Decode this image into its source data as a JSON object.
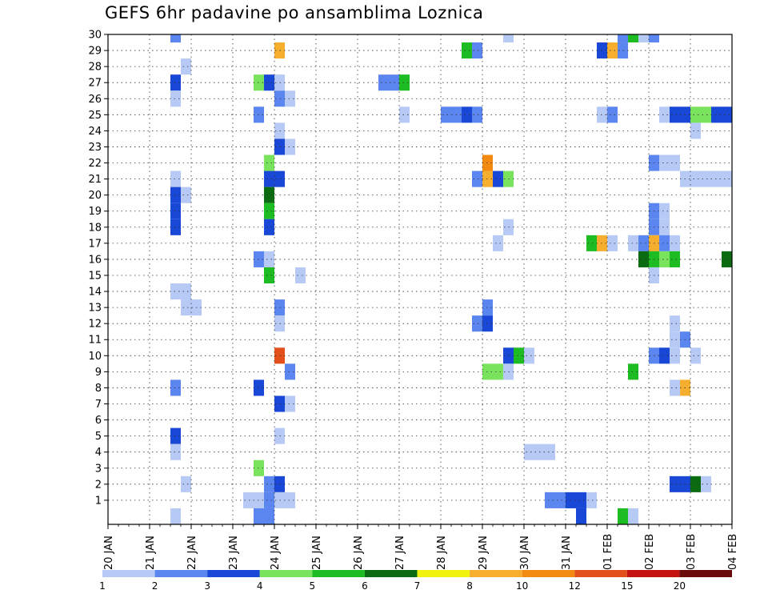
{
  "chart_data": {
    "type": "heatmap",
    "title": "GEFS 6hr padavine po ansamblima Loznica",
    "xlabel": "",
    "ylabel": "",
    "y_ticks": [
      1,
      2,
      3,
      4,
      5,
      6,
      7,
      8,
      9,
      10,
      11,
      12,
      13,
      14,
      15,
      16,
      17,
      18,
      19,
      20,
      21,
      22,
      23,
      24,
      25,
      26,
      27,
      28,
      29,
      30
    ],
    "ylim": [
      0,
      30
    ],
    "x_start_day_label": "20 JAN",
    "x_ticks": [
      "20 JAN",
      "21 JAN",
      "22 JAN",
      "23 JAN",
      "24 JAN",
      "25 JAN",
      "26 JAN",
      "27 JAN",
      "28 JAN",
      "29 JAN",
      "30 JAN",
      "31 JAN",
      "01 FEB",
      "02 FEB",
      "03 FEB",
      "04 FEB"
    ],
    "x_step": "6hr",
    "grid": true,
    "legend": {
      "position": "bottom",
      "labels": [
        "1",
        "2",
        "3",
        "4",
        "5",
        "6",
        "7",
        "8",
        "10",
        "12",
        "15",
        "20"
      ],
      "colors": [
        "#b7c9f5",
        "#5b86ef",
        "#1947d6",
        "#7ae35d",
        "#1cbc22",
        "#0b6b10",
        "#f2f20f",
        "#f6ae2e",
        "#f28a12",
        "#e4501c",
        "#c41410",
        "#6b0a0a"
      ]
    },
    "cells": [
      {
        "y": 30,
        "x": [
          [
            1.5,
            1.75,
            "#5b86ef"
          ],
          [
            9.5,
            9.75,
            "#b7c9f5"
          ],
          [
            12.25,
            12.5,
            "#5b86ef"
          ],
          [
            12.5,
            12.75,
            "#1cbc22"
          ],
          [
            12.75,
            13.0,
            "#b7c9f5"
          ],
          [
            13.0,
            13.25,
            "#5b86ef"
          ]
        ]
      },
      {
        "y": 29,
        "x": [
          [
            4.0,
            4.25,
            "#f6ae2e"
          ],
          [
            8.5,
            8.75,
            "#1cbc22"
          ],
          [
            8.75,
            9.0,
            "#5b86ef"
          ],
          [
            11.75,
            12.0,
            "#1947d6"
          ],
          [
            12.0,
            12.25,
            "#f6ae2e"
          ],
          [
            12.25,
            12.5,
            "#5b86ef"
          ]
        ]
      },
      {
        "y": 28,
        "x": [
          [
            1.75,
            2.0,
            "#b7c9f5"
          ]
        ]
      },
      {
        "y": 27,
        "x": [
          [
            1.5,
            1.75,
            "#1947d6"
          ],
          [
            3.5,
            3.75,
            "#7ae35d"
          ],
          [
            3.75,
            4.0,
            "#1947d6"
          ],
          [
            4.0,
            4.25,
            "#b7c9f5"
          ],
          [
            6.5,
            7.0,
            "#5b86ef"
          ],
          [
            7.0,
            7.25,
            "#1cbc22"
          ]
        ]
      },
      {
        "y": 26,
        "x": [
          [
            1.5,
            1.75,
            "#b7c9f5"
          ],
          [
            4.0,
            4.25,
            "#5b86ef"
          ],
          [
            4.25,
            4.5,
            "#b7c9f5"
          ]
        ]
      },
      {
        "y": 25,
        "x": [
          [
            3.5,
            3.75,
            "#5b86ef"
          ],
          [
            7.0,
            7.25,
            "#b7c9f5"
          ],
          [
            8.0,
            8.5,
            "#5b86ef"
          ],
          [
            8.5,
            8.75,
            "#1947d6"
          ],
          [
            8.75,
            9.0,
            "#5b86ef"
          ],
          [
            11.75,
            12.0,
            "#b7c9f5"
          ],
          [
            12.0,
            12.25,
            "#5b86ef"
          ],
          [
            13.25,
            13.5,
            "#b7c9f5"
          ],
          [
            13.5,
            14.0,
            "#1947d6"
          ],
          [
            14.0,
            14.5,
            "#7ae35d"
          ],
          [
            14.5,
            15.0,
            "#1947d6"
          ]
        ]
      },
      {
        "y": 24,
        "x": [
          [
            4.0,
            4.25,
            "#b7c9f5"
          ],
          [
            14.0,
            14.25,
            "#b7c9f5"
          ]
        ]
      },
      {
        "y": 23,
        "x": [
          [
            4.0,
            4.25,
            "#1947d6"
          ],
          [
            4.25,
            4.5,
            "#b7c9f5"
          ]
        ]
      },
      {
        "y": 22,
        "x": [
          [
            3.75,
            4.0,
            "#7ae35d"
          ],
          [
            9.0,
            9.25,
            "#f28a12"
          ],
          [
            13.0,
            13.25,
            "#5b86ef"
          ],
          [
            13.25,
            13.75,
            "#b7c9f5"
          ]
        ]
      },
      {
        "y": 21,
        "x": [
          [
            1.5,
            1.75,
            "#b7c9f5"
          ],
          [
            3.75,
            4.25,
            "#1947d6"
          ],
          [
            8.75,
            9.0,
            "#5b86ef"
          ],
          [
            9.0,
            9.25,
            "#f6ae2e"
          ],
          [
            9.25,
            9.5,
            "#1947d6"
          ],
          [
            9.5,
            9.75,
            "#7ae35d"
          ],
          [
            13.75,
            15.0,
            "#b7c9f5"
          ]
        ]
      },
      {
        "y": 20,
        "x": [
          [
            1.5,
            1.75,
            "#1947d6"
          ],
          [
            1.75,
            2.0,
            "#b7c9f5"
          ],
          [
            3.75,
            4.0,
            "#0b6b10"
          ]
        ]
      },
      {
        "y": 19,
        "x": [
          [
            1.5,
            1.75,
            "#1947d6"
          ],
          [
            3.75,
            4.0,
            "#1cbc22"
          ],
          [
            13.0,
            13.25,
            "#5b86ef"
          ],
          [
            13.25,
            13.5,
            "#b7c9f5"
          ]
        ]
      },
      {
        "y": 18,
        "x": [
          [
            1.5,
            1.75,
            "#1947d6"
          ],
          [
            3.75,
            4.0,
            "#1947d6"
          ],
          [
            9.5,
            9.75,
            "#b7c9f5"
          ],
          [
            13.0,
            13.25,
            "#5b86ef"
          ],
          [
            13.25,
            13.5,
            "#b7c9f5"
          ]
        ]
      },
      {
        "y": 17,
        "x": [
          [
            9.25,
            9.5,
            "#b7c9f5"
          ],
          [
            11.5,
            11.75,
            "#1cbc22"
          ],
          [
            11.75,
            12.0,
            "#f6ae2e"
          ],
          [
            12.0,
            12.25,
            "#b7c9f5"
          ],
          [
            12.5,
            12.75,
            "#b7c9f5"
          ],
          [
            12.75,
            13.0,
            "#5b86ef"
          ],
          [
            13.0,
            13.25,
            "#f6ae2e"
          ],
          [
            13.25,
            13.5,
            "#5b86ef"
          ],
          [
            13.5,
            13.75,
            "#b7c9f5"
          ]
        ]
      },
      {
        "y": 16,
        "x": [
          [
            3.5,
            3.75,
            "#5b86ef"
          ],
          [
            3.75,
            4.0,
            "#b7c9f5"
          ],
          [
            12.75,
            13.0,
            "#0b6b10"
          ],
          [
            13.0,
            13.25,
            "#1cbc22"
          ],
          [
            13.25,
            13.5,
            "#7ae35d"
          ],
          [
            13.5,
            13.75,
            "#1cbc22"
          ],
          [
            14.75,
            15.0,
            "#0b6b10"
          ]
        ]
      },
      {
        "y": 15,
        "x": [
          [
            3.75,
            4.0,
            "#1cbc22"
          ],
          [
            4.5,
            4.75,
            "#b7c9f5"
          ],
          [
            13.0,
            13.25,
            "#b7c9f5"
          ]
        ]
      },
      {
        "y": 14,
        "x": [
          [
            1.5,
            2.0,
            "#b7c9f5"
          ]
        ]
      },
      {
        "y": 13,
        "x": [
          [
            1.75,
            2.25,
            "#b7c9f5"
          ],
          [
            4.0,
            4.25,
            "#5b86ef"
          ],
          [
            9.0,
            9.25,
            "#5b86ef"
          ]
        ]
      },
      {
        "y": 12,
        "x": [
          [
            4.0,
            4.25,
            "#b7c9f5"
          ],
          [
            8.75,
            9.0,
            "#5b86ef"
          ],
          [
            9.0,
            9.25,
            "#1947d6"
          ],
          [
            13.5,
            13.75,
            "#b7c9f5"
          ]
        ]
      },
      {
        "y": 11,
        "x": [
          [
            13.5,
            13.75,
            "#b7c9f5"
          ],
          [
            13.75,
            14.0,
            "#5b86ef"
          ]
        ]
      },
      {
        "y": 10,
        "x": [
          [
            4.0,
            4.25,
            "#e4501c"
          ],
          [
            9.5,
            9.75,
            "#1947d6"
          ],
          [
            9.75,
            10.0,
            "#1cbc22"
          ],
          [
            10.0,
            10.25,
            "#b7c9f5"
          ],
          [
            13.0,
            13.25,
            "#5b86ef"
          ],
          [
            13.25,
            13.5,
            "#1947d6"
          ],
          [
            13.5,
            13.75,
            "#b7c9f5"
          ],
          [
            14.0,
            14.25,
            "#b7c9f5"
          ]
        ]
      },
      {
        "y": 9,
        "x": [
          [
            4.25,
            4.5,
            "#5b86ef"
          ],
          [
            9.0,
            9.5,
            "#7ae35d"
          ],
          [
            9.5,
            9.75,
            "#b7c9f5"
          ],
          [
            12.5,
            12.75,
            "#1cbc22"
          ]
        ]
      },
      {
        "y": 8,
        "x": [
          [
            1.5,
            1.75,
            "#5b86ef"
          ],
          [
            3.5,
            3.75,
            "#1947d6"
          ],
          [
            13.5,
            13.75,
            "#b7c9f5"
          ],
          [
            13.75,
            14.0,
            "#f6ae2e"
          ]
        ]
      },
      {
        "y": 7,
        "x": [
          [
            4.0,
            4.25,
            "#1947d6"
          ],
          [
            4.25,
            4.5,
            "#b7c9f5"
          ]
        ]
      },
      {
        "y": 5,
        "x": [
          [
            1.5,
            1.75,
            "#1947d6"
          ],
          [
            4.0,
            4.25,
            "#b7c9f5"
          ]
        ]
      },
      {
        "y": 4,
        "x": [
          [
            1.5,
            1.75,
            "#b7c9f5"
          ],
          [
            10.0,
            10.75,
            "#b7c9f5"
          ]
        ]
      },
      {
        "y": 3,
        "x": [
          [
            3.5,
            3.75,
            "#7ae35d"
          ]
        ]
      },
      {
        "y": 2,
        "x": [
          [
            1.75,
            2.0,
            "#b7c9f5"
          ],
          [
            3.75,
            4.0,
            "#5b86ef"
          ],
          [
            4.0,
            4.25,
            "#1947d6"
          ],
          [
            13.5,
            14.0,
            "#1947d6"
          ],
          [
            14.0,
            14.25,
            "#0b6b10"
          ],
          [
            14.25,
            14.5,
            "#b7c9f5"
          ]
        ]
      },
      {
        "y": 1,
        "x": [
          [
            3.25,
            3.75,
            "#b7c9f5"
          ],
          [
            3.75,
            4.0,
            "#5b86ef"
          ],
          [
            4.0,
            4.5,
            "#b7c9f5"
          ],
          [
            10.5,
            11.0,
            "#5b86ef"
          ],
          [
            11.0,
            11.5,
            "#1947d6"
          ],
          [
            11.5,
            11.75,
            "#b7c9f5"
          ]
        ]
      },
      {
        "y": 0,
        "x": [
          [
            1.5,
            1.75,
            "#b7c9f5"
          ],
          [
            3.5,
            4.0,
            "#5b86ef"
          ],
          [
            11.25,
            11.5,
            "#1947d6"
          ],
          [
            12.25,
            12.5,
            "#1cbc22"
          ],
          [
            12.5,
            12.75,
            "#b7c9f5"
          ]
        ]
      }
    ]
  }
}
